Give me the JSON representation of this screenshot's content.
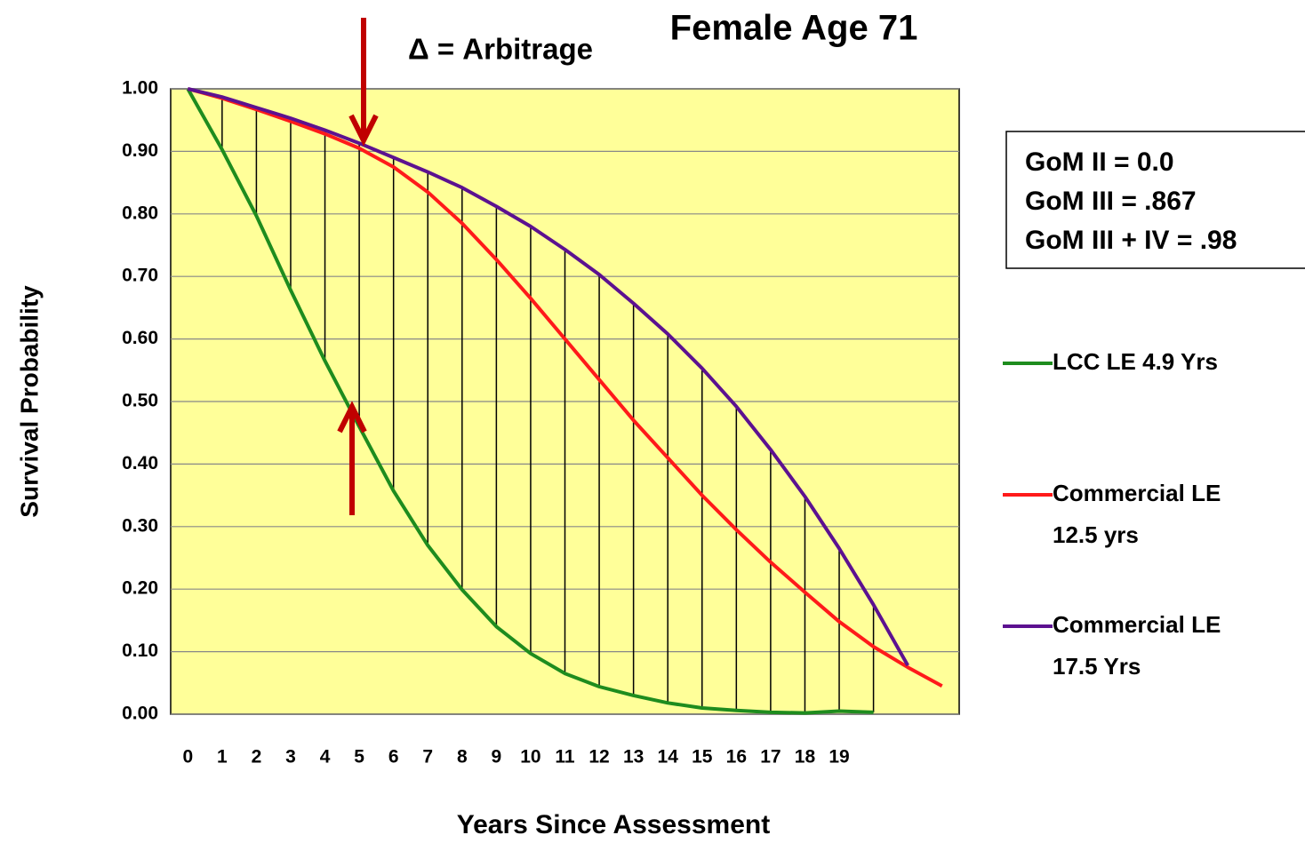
{
  "chart_data": {
    "type": "line",
    "title": "Female Age 71",
    "x_label": "Years Since Assessment",
    "y_label": "Survival Probability",
    "annotations": [
      "Δ = Arbitrage",
      "GoM II = 0.0",
      "GoM III = .867",
      "GoM III + IV = .98"
    ],
    "categories": [
      "0",
      "1",
      "2",
      "3",
      "4",
      "5",
      "6",
      "7",
      "8",
      "9",
      "10",
      "11",
      "12",
      "13",
      "14",
      "15",
      "16",
      "17",
      "18",
      "19",
      null,
      null,
      null
    ],
    "series": [
      {
        "name": "LCC LE 4.9 Yrs",
        "color": "#1e8c1e",
        "values": [
          1.0,
          0.903,
          0.797,
          0.678,
          0.565,
          0.46,
          0.357,
          0.27,
          0.199,
          0.14,
          0.097,
          0.065,
          0.044,
          0.03,
          0.018,
          0.01,
          0.006,
          0.003,
          0.002,
          0.005,
          0.003,
          null,
          null
        ]
      },
      {
        "name": "Commercial LE 12.5 yrs",
        "color": "#ff1a1a",
        "values": [
          1.0,
          0.985,
          0.967,
          0.948,
          0.928,
          0.905,
          0.875,
          0.835,
          0.785,
          0.727,
          0.665,
          0.6,
          0.535,
          0.47,
          0.41,
          0.35,
          0.295,
          0.243,
          0.195,
          0.148,
          0.108,
          0.075,
          0.045
        ]
      },
      {
        "name": "Commercial LE 17.5 Yrs",
        "color": "#5c1190",
        "values": [
          1.0,
          0.987,
          0.97,
          0.953,
          0.934,
          0.913,
          0.89,
          0.867,
          0.842,
          0.812,
          0.78,
          0.743,
          0.703,
          0.657,
          0.608,
          0.553,
          0.492,
          0.423,
          0.348,
          0.265,
          0.175,
          0.078,
          null
        ]
      }
    ],
    "ylim": [
      0,
      1
    ],
    "yticks": [
      {
        "value": 0,
        "label": "0.00"
      },
      {
        "value": 0.1,
        "label": "0.10"
      },
      {
        "value": 0.2,
        "label": "0.20"
      },
      {
        "value": 0.3,
        "label": "0.30"
      },
      {
        "value": 0.4,
        "label": "0.40"
      },
      {
        "value": 0.5,
        "label": "0.50"
      },
      {
        "value": 0.6,
        "label": "0.60"
      },
      {
        "value": 0.7,
        "label": "0.70"
      },
      {
        "value": 0.8,
        "label": "0.80"
      },
      {
        "value": 0.9,
        "label": "0.90"
      },
      {
        "value": 1,
        "label": "1.00"
      }
    ],
    "grid": true,
    "plot_background": "#ffff99",
    "hi_lo_lines": true
  }
}
